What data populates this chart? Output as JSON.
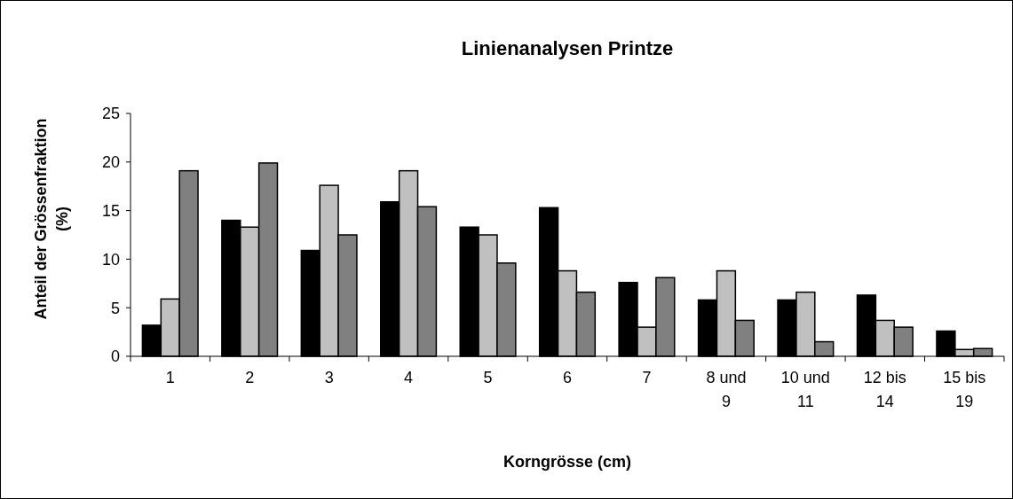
{
  "chart_data": {
    "type": "bar",
    "title": "Linienanalysen Printze",
    "xlabel": "Korngrösse (cm)",
    "ylabel": "Anteil der Grössenfraktion (%)",
    "categories": [
      "1",
      "2",
      "3",
      "4",
      "5",
      "6",
      "7",
      "8 und 9",
      "10 und 11",
      "12 bis 14",
      "15 bis 19"
    ],
    "series": [
      {
        "color": "#000000",
        "values": [
          3.2,
          14.0,
          10.9,
          15.9,
          13.3,
          15.3,
          7.6,
          5.8,
          5.8,
          6.3,
          2.6
        ]
      },
      {
        "color": "#c0c0c0",
        "values": [
          5.9,
          13.3,
          17.6,
          19.1,
          12.5,
          8.8,
          3.0,
          8.8,
          6.6,
          3.7,
          0.7
        ]
      },
      {
        "color": "#808080",
        "values": [
          19.1,
          19.9,
          12.5,
          15.4,
          9.6,
          6.6,
          8.1,
          3.7,
          1.5,
          3.0,
          0.8
        ]
      }
    ],
    "ylim": [
      0,
      25
    ],
    "yticks": [
      0,
      5,
      10,
      15,
      20,
      25
    ],
    "grid": false
  }
}
